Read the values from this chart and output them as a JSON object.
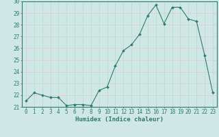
{
  "x": [
    0,
    1,
    2,
    3,
    4,
    5,
    6,
    7,
    8,
    9,
    10,
    11,
    12,
    13,
    14,
    15,
    16,
    17,
    18,
    19,
    20,
    21,
    22,
    23
  ],
  "y": [
    21.5,
    22.2,
    22.0,
    21.8,
    21.8,
    21.1,
    21.2,
    21.2,
    21.1,
    22.4,
    22.7,
    24.5,
    25.8,
    26.3,
    27.2,
    28.8,
    29.7,
    28.1,
    29.5,
    29.5,
    28.5,
    28.3,
    25.4,
    22.2
  ],
  "line_color": "#2d7a6e",
  "marker": "D",
  "marker_size": 2.0,
  "bg_color": "#cfe8e5",
  "grid_h_color": "#e8c8c8",
  "grid_v_color": "#b8d8d5",
  "xlabel": "Humidex (Indice chaleur)",
  "ylim": [
    21,
    30
  ],
  "xlim": [
    -0.5,
    23.5
  ],
  "yticks": [
    21,
    22,
    23,
    24,
    25,
    26,
    27,
    28,
    29,
    30
  ],
  "xticks": [
    0,
    1,
    2,
    3,
    4,
    5,
    6,
    7,
    8,
    9,
    10,
    11,
    12,
    13,
    14,
    15,
    16,
    17,
    18,
    19,
    20,
    21,
    22,
    23
  ],
  "tick_color": "#2d7a6e",
  "axis_color": "#2d7a6e",
  "label_fontsize": 6.5,
  "tick_fontsize": 5.5
}
